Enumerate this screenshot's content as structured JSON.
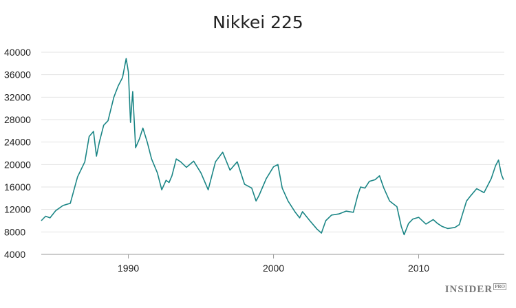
{
  "chart_data": {
    "type": "line",
    "title": "Nikkei 225",
    "xlabel": "",
    "ylabel": "",
    "xlim": [
      1984.0,
      2015.9
    ],
    "ylim": [
      4000,
      40000
    ],
    "yticks": [
      4000,
      8000,
      12000,
      16000,
      20000,
      24000,
      28000,
      32000,
      36000,
      40000
    ],
    "ytick_labels": [
      "4000",
      "8000",
      "12000",
      "16000",
      "20000",
      "24000",
      "28000",
      "32000",
      "36000",
      "40000"
    ],
    "xticks": [
      1990,
      2000,
      2010
    ],
    "xtick_labels": [
      "1990",
      "2000",
      "2010"
    ],
    "grid": "horizontal",
    "legend": "none",
    "series": [
      {
        "color": "#1a8585",
        "x": [
          1984.0,
          1984.3,
          1984.6,
          1985.0,
          1985.5,
          1986.0,
          1986.5,
          1987.0,
          1987.3,
          1987.6,
          1987.8,
          1988.0,
          1988.3,
          1988.6,
          1989.0,
          1989.3,
          1989.6,
          1989.85,
          1990.0,
          1990.15,
          1990.3,
          1990.5,
          1990.75,
          1991.0,
          1991.3,
          1991.6,
          1992.0,
          1992.3,
          1992.6,
          1992.8,
          1993.0,
          1993.3,
          1993.6,
          1994.0,
          1994.5,
          1995.0,
          1995.5,
          1996.0,
          1996.5,
          1997.0,
          1997.5,
          1998.0,
          1998.5,
          1998.8,
          1999.0,
          1999.5,
          2000.0,
          2000.3,
          2000.6,
          2001.0,
          2001.5,
          2001.8,
          2002.0,
          2002.5,
          2003.0,
          2003.3,
          2003.6,
          2004.0,
          2004.5,
          2005.0,
          2005.5,
          2005.8,
          2006.0,
          2006.3,
          2006.6,
          2007.0,
          2007.3,
          2007.6,
          2008.0,
          2008.5,
          2008.8,
          2009.0,
          2009.3,
          2009.6,
          2010.0,
          2010.5,
          2011.0,
          2011.3,
          2011.6,
          2012.0,
          2012.5,
          2012.8,
          2013.0,
          2013.3,
          2013.6,
          2014.0,
          2014.5,
          2015.0,
          2015.3,
          2015.5,
          2015.7,
          2015.85
        ],
        "y": [
          10000,
          10800,
          10500,
          11800,
          12700,
          13100,
          17800,
          20500,
          25000,
          25900,
          21500,
          24000,
          27000,
          27800,
          32000,
          34000,
          35500,
          38900,
          36500,
          27500,
          33000,
          23000,
          24500,
          26500,
          24000,
          21000,
          18500,
          15500,
          17200,
          16800,
          18000,
          21000,
          20500,
          19500,
          20600,
          18500,
          15500,
          20500,
          22200,
          19000,
          20500,
          16500,
          15800,
          13500,
          14500,
          17500,
          19600,
          20000,
          15800,
          13500,
          11500,
          10500,
          11600,
          10000,
          8500,
          7800,
          10000,
          11000,
          11200,
          11700,
          11500,
          14500,
          16000,
          15800,
          17000,
          17300,
          18000,
          15800,
          13500,
          12500,
          9000,
          7500,
          9500,
          10300,
          10600,
          9400,
          10200,
          9500,
          9000,
          8600,
          8800,
          9300,
          11000,
          13500,
          14500,
          15700,
          15000,
          17500,
          19800,
          20800,
          18200,
          17300
        ]
      }
    ]
  },
  "branding": {
    "logo_main": "INSIDER",
    "logo_sub": "PRO"
  }
}
